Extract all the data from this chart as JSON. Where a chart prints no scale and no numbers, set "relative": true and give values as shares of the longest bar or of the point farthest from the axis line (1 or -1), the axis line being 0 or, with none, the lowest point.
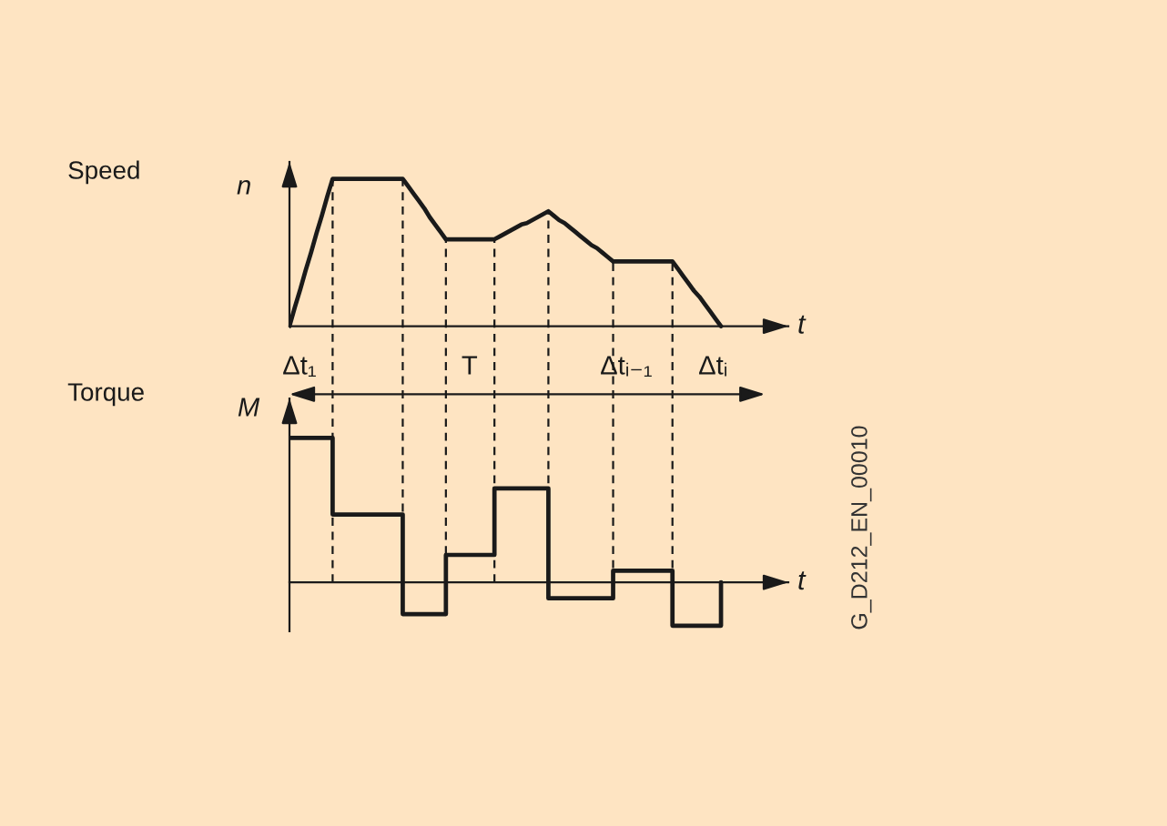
{
  "chart_data": [
    {
      "type": "line",
      "title": "Speed",
      "ylabel": "n",
      "xlabel": "t",
      "relative": true,
      "tick_labels": false,
      "categories": [
        null,
        null,
        null,
        null,
        null,
        null,
        null,
        null,
        null,
        null,
        null,
        null,
        null,
        null,
        null,
        null,
        null,
        null,
        null,
        null,
        null,
        null,
        null,
        null,
        null,
        null,
        null,
        null,
        null,
        null,
        null,
        null,
        null,
        null,
        null,
        null,
        null,
        null,
        null,
        null,
        null,
        null,
        null,
        null,
        null,
        null,
        null,
        null,
        null,
        null,
        null,
        null,
        null,
        null,
        null,
        null,
        null,
        null,
        null,
        null,
        null,
        null,
        null,
        null,
        null,
        null,
        null,
        null,
        null,
        null,
        null,
        null,
        null,
        null,
        null,
        null,
        null,
        null,
        null,
        null,
        null
      ],
      "series": [
        {
          "color": "#1a1a1a",
          "values": [
            0,
            0.13,
            0.25,
            0.38,
            0.5,
            0.63,
            0.75,
            0.88,
            1,
            1,
            1,
            1,
            1,
            1,
            1,
            1,
            1,
            1,
            1,
            1,
            1,
            1,
            0.95,
            0.9,
            0.85,
            0.8,
            0.74,
            0.69,
            0.64,
            0.59,
            0.59,
            0.59,
            0.59,
            0.59,
            0.59,
            0.59,
            0.59,
            0.59,
            0.59,
            0.61,
            0.63,
            0.65,
            0.67,
            0.69,
            0.7,
            0.72,
            0.74,
            0.76,
            0.78,
            0.75,
            0.72,
            0.7,
            0.67,
            0.64,
            0.61,
            0.58,
            0.55,
            0.53,
            0.5,
            0.47,
            0.44,
            0.44,
            0.44,
            0.44,
            0.44,
            0.44,
            0.44,
            0.44,
            0.44,
            0.44,
            0.44,
            0.44,
            0.39,
            0.34,
            0.29,
            0.24,
            0.2,
            0.15,
            0.1,
            0.05,
            0
          ]
        }
      ],
      "annotations": [
        "Δt₁",
        "T",
        "Δtᵢ₋₁",
        "Δtᵢ"
      ]
    },
    {
      "type": "step",
      "title": "Torque",
      "ylabel": "M",
      "xlabel": "t",
      "relative": true,
      "tick_labels": false,
      "categories": [
        null,
        null,
        null,
        null,
        null,
        null,
        null,
        null,
        null,
        null,
        null,
        null,
        null,
        null,
        null,
        null,
        null,
        null,
        null,
        null,
        null,
        null,
        null,
        null,
        null,
        null,
        null,
        null,
        null,
        null,
        null,
        null,
        null,
        null,
        null,
        null,
        null,
        null,
        null,
        null,
        null,
        null,
        null,
        null,
        null,
        null,
        null,
        null,
        null,
        null,
        null,
        null,
        null,
        null,
        null,
        null,
        null,
        null,
        null,
        null,
        null,
        null,
        null,
        null,
        null,
        null,
        null,
        null,
        null,
        null,
        null,
        null,
        null,
        null,
        null,
        null,
        null,
        null,
        null,
        null,
        null
      ],
      "series": [
        {
          "color": "#1a1a1a",
          "values": [
            1,
            1,
            1,
            1,
            1,
            1,
            1,
            1,
            0.47,
            0.47,
            0.47,
            0.47,
            0.47,
            0.47,
            0.47,
            0.47,
            0.47,
            0.47,
            0.47,
            0.47,
            0.47,
            -0.22,
            -0.22,
            -0.22,
            -0.22,
            -0.22,
            -0.22,
            -0.22,
            -0.22,
            0.19,
            0.19,
            0.19,
            0.19,
            0.19,
            0.19,
            0.19,
            0.19,
            0.19,
            0.65,
            0.65,
            0.65,
            0.65,
            0.65,
            0.65,
            0.65,
            0.65,
            0.65,
            0.65,
            -0.11,
            -0.11,
            -0.11,
            -0.11,
            -0.11,
            -0.11,
            -0.11,
            -0.11,
            -0.11,
            -0.11,
            -0.11,
            -0.11,
            0.08,
            0.08,
            0.08,
            0.08,
            0.08,
            0.08,
            0.08,
            0.08,
            0.08,
            0.08,
            0.08,
            -0.3,
            -0.3,
            -0.3,
            -0.3,
            -0.3,
            -0.3,
            -0.3,
            -0.3,
            -0.3,
            0
          ]
        }
      ],
      "annotations": [
        "G_D212_EN_00010"
      ]
    }
  ]
}
